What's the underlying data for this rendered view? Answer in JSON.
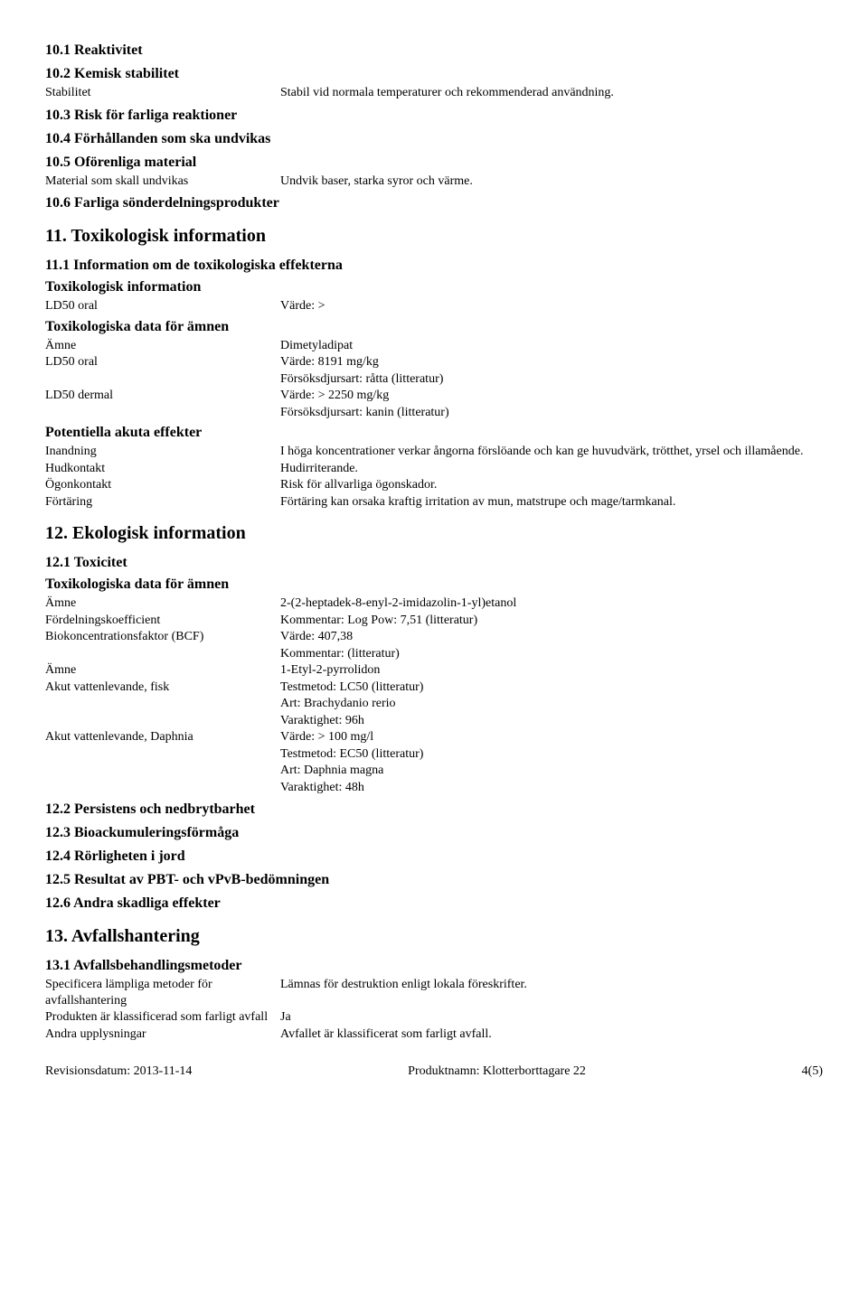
{
  "s10_1": "10.1 Reaktivitet",
  "s10_2": "10.2 Kemisk stabilitet",
  "s10_2_row_label": "Stabilitet",
  "s10_2_row_value": "Stabil vid normala temperaturer och rekommenderad användning.",
  "s10_3": "10.3 Risk för farliga reaktioner",
  "s10_4": "10.4 Förhållanden som ska undvikas",
  "s10_5": "10.5 Oförenliga material",
  "s10_5_row_label": "Material som skall undvikas",
  "s10_5_row_value": "Undvik baser, starka syror och värme.",
  "s10_6": "10.6 Farliga sönderdelningsprodukter",
  "s11": "11. Toxikologisk information",
  "s11_1": "11.1 Information om de toxikologiska effekterna",
  "toxinfo_h": "Toxikologisk information",
  "ld50_oral_label": "LD50 oral",
  "ld50_oral_value": "Värde: >",
  "toxdata_h": "Toxikologiska data för ämnen",
  "amne_label": "Ämne",
  "amne_value": "Dimetyladipat",
  "ld50_oral2_label": "LD50 oral",
  "ld50_oral2_value": "Värde: 8191 mg/kg",
  "ld50_oral2_value2": "Försöksdjursart: råtta (litteratur)",
  "ld50_dermal_label": "LD50 dermal",
  "ld50_dermal_value": "Värde: > 2250 mg/kg",
  "ld50_dermal_value2": "Försöksdjursart: kanin (litteratur)",
  "pot_h": "Potentiella akuta effekter",
  "inandning_label": "Inandning",
  "inandning_value": "I höga koncentrationer verkar ångorna förslöande och kan ge huvudvärk, trötthet, yrsel och illamående.",
  "hudkontakt_label": "Hudkontakt",
  "hudkontakt_value": "Hudirriterande.",
  "ogonkontakt_label": "Ögonkontakt",
  "ogonkontakt_value": "Risk för allvarliga ögonskador.",
  "fortaring_label": "Förtäring",
  "fortaring_value": "Förtäring kan orsaka kraftig irritation av mun, matstrupe och mage/tarmkanal.",
  "s12": "12. Ekologisk information",
  "s12_1": "12.1 Toxicitet",
  "toxdata2_h": "Toxikologiska data för ämnen",
  "amne2_label": "Ämne",
  "amne2_value": "2-(2-heptadek-8-enyl-2-imidazolin-1-yl)etanol",
  "fordel_label": "Fördelningskoefficient",
  "fordel_value": "Kommentar: Log Pow: 7,51 (litteratur)",
  "bcf_label": "Biokoncentrationsfaktor (BCF)",
  "bcf_value": "Värde: 407,38",
  "bcf_value2": "Kommentar: (litteratur)",
  "amne3_label": "Ämne",
  "amne3_value": "1-Etyl-2-pyrrolidon",
  "fisk_label": "Akut vattenlevande, fisk",
  "fisk_value": "Testmetod: LC50 (litteratur)",
  "fisk_value2": "Art: Brachydanio rerio",
  "fisk_value3": "Varaktighet: 96h",
  "daphnia_label": "Akut vattenlevande, Daphnia",
  "daphnia_value": "Värde: > 100 mg/l",
  "daphnia_value2": "Testmetod: EC50 (litteratur)",
  "daphnia_value3": "Art: Daphnia magna",
  "daphnia_value4": "Varaktighet: 48h",
  "s12_2": "12.2 Persistens och nedbrytbarhet",
  "s12_3": "12.3 Bioackumuleringsförmåga",
  "s12_4": "12.4 Rörligheten i jord",
  "s12_5": "12.5 Resultat av PBT- och vPvB-bedömningen",
  "s12_6": "12.6 Andra skadliga effekter",
  "s13": "13. Avfallshantering",
  "s13_1": "13.1 Avfallsbehandlingsmetoder",
  "spec_label": "Specificera lämpliga metoder för avfallshantering",
  "spec_value": "Lämnas för destruktion enligt lokala föreskrifter.",
  "klass_label": "Produkten är klassificerad som farligt avfall",
  "klass_value": "Ja",
  "andra_label": "Andra upplysningar",
  "andra_value": "Avfallet är klassificerat som farligt avfall.",
  "footer_left": "Revisionsdatum: 2013-11-14",
  "footer_center": "Produktnamn: Klotterborttagare 22",
  "footer_right": "4(5)"
}
